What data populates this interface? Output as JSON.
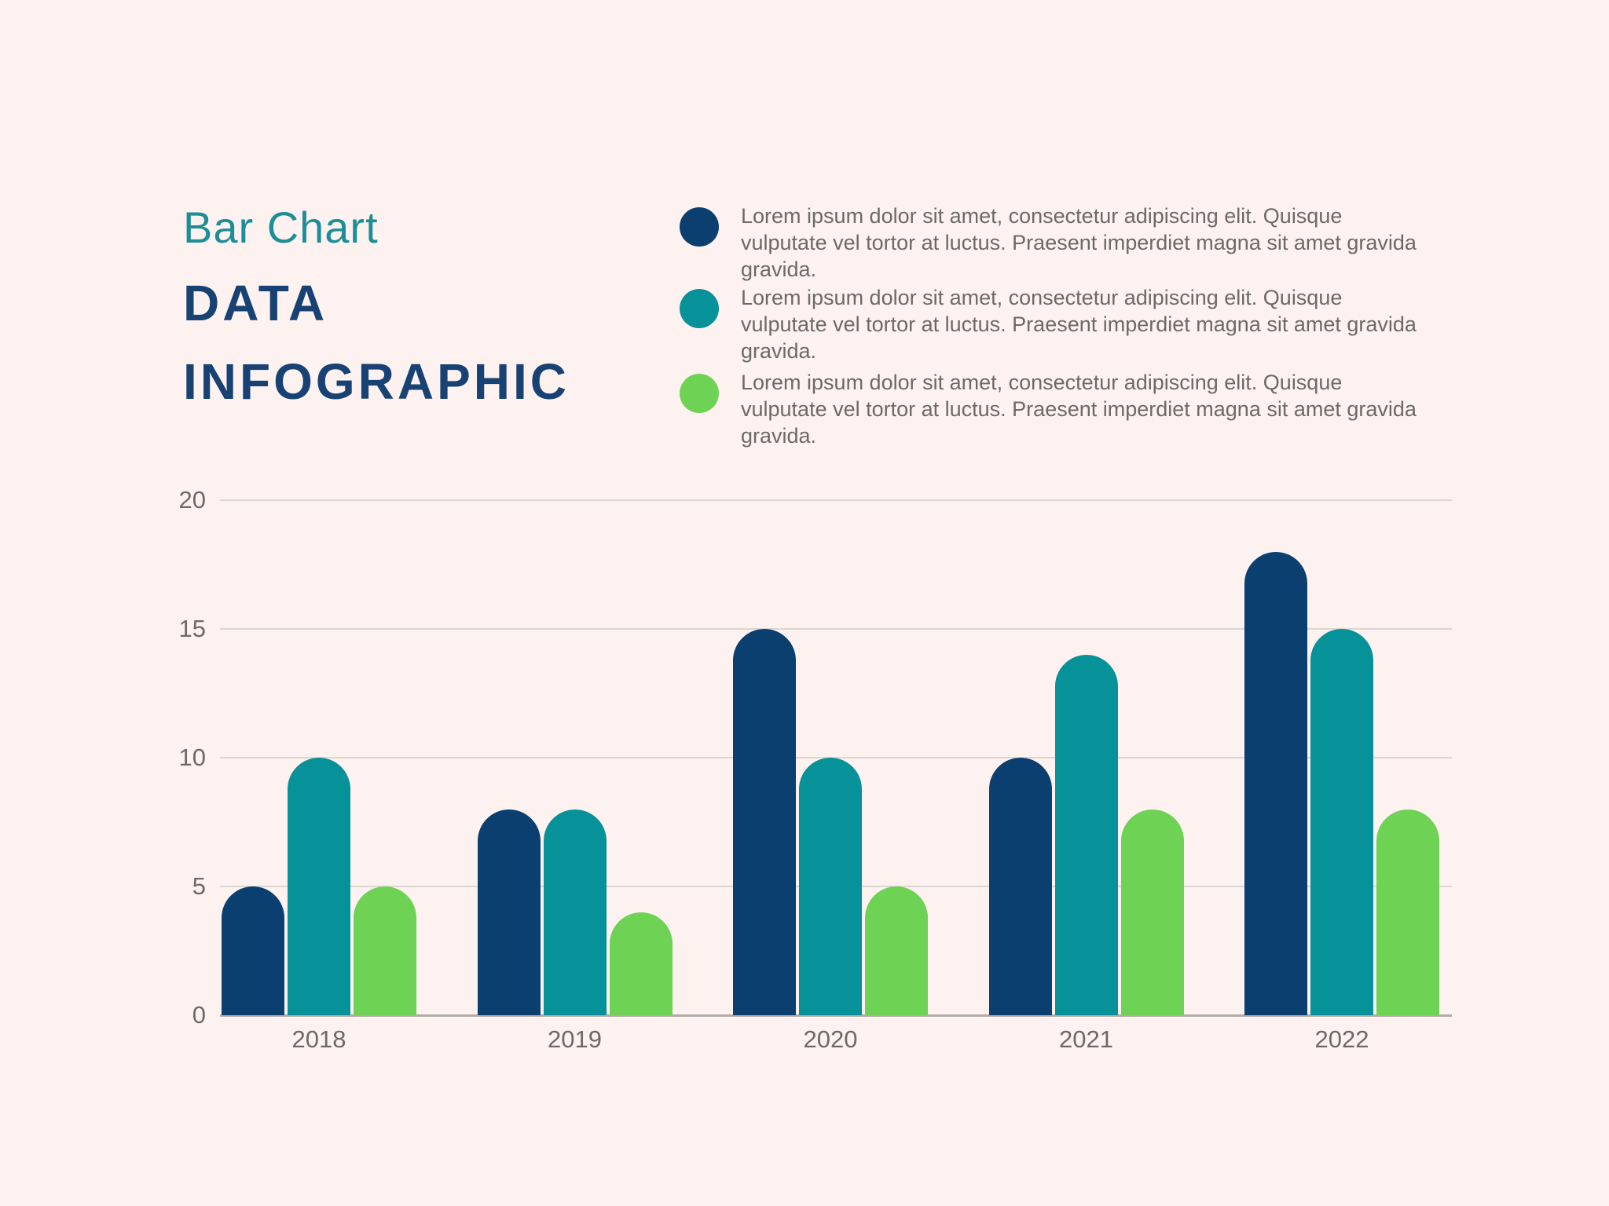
{
  "header": {
    "subtitle": "Bar Chart",
    "title_line1": "DATA",
    "title_line2": "INFOGRAPHIC"
  },
  "legend": {
    "items": [
      {
        "icon": "circle-swatch",
        "color": "#0a3f70",
        "text": "Lorem ipsum dolor sit amet, consectetur adipiscing elit. Quisque vulputate vel tortor at luctus. Praesent imperdiet magna sit amet gravida gravida."
      },
      {
        "icon": "circle-swatch",
        "color": "#079199",
        "text": "Lorem ipsum dolor sit amet, consectetur adipiscing elit. Quisque vulputate vel tortor at luctus. Praesent imperdiet magna sit amet gravida gravida."
      },
      {
        "icon": "circle-swatch",
        "color": "#6ed255",
        "text": "Lorem ipsum dolor sit amet, consectetur adipiscing elit. Quisque vulputate vel tortor at luctus. Praesent imperdiet magna sit amet gravida gravida."
      }
    ]
  },
  "chart_data": {
    "type": "bar",
    "title": "Bar Chart Data Infographic",
    "categories": [
      "2018",
      "2019",
      "2020",
      "2021",
      "2022"
    ],
    "series": [
      {
        "name": "series-navy",
        "color": "#0a3f70",
        "values": [
          5,
          8,
          15,
          10,
          18
        ]
      },
      {
        "name": "series-teal",
        "color": "#079199",
        "values": [
          10,
          8,
          10,
          14,
          15
        ]
      },
      {
        "name": "series-green",
        "color": "#6ed255",
        "values": [
          5,
          4,
          5,
          8,
          8
        ]
      }
    ],
    "xlabel": "",
    "ylabel": "",
    "ylim": [
      0,
      20
    ],
    "yticks": [
      0,
      5,
      10,
      15,
      20
    ],
    "grid": true,
    "legend_position": "top-right"
  },
  "colors": {
    "background": "#fdf2ef",
    "subtitle_text": "#1d8e98",
    "title_text": "#174273",
    "body_text": "#6d6966",
    "tick_text": "#6d6966",
    "gridline": "#dcd6d2",
    "baseline": "#b2aca9"
  }
}
